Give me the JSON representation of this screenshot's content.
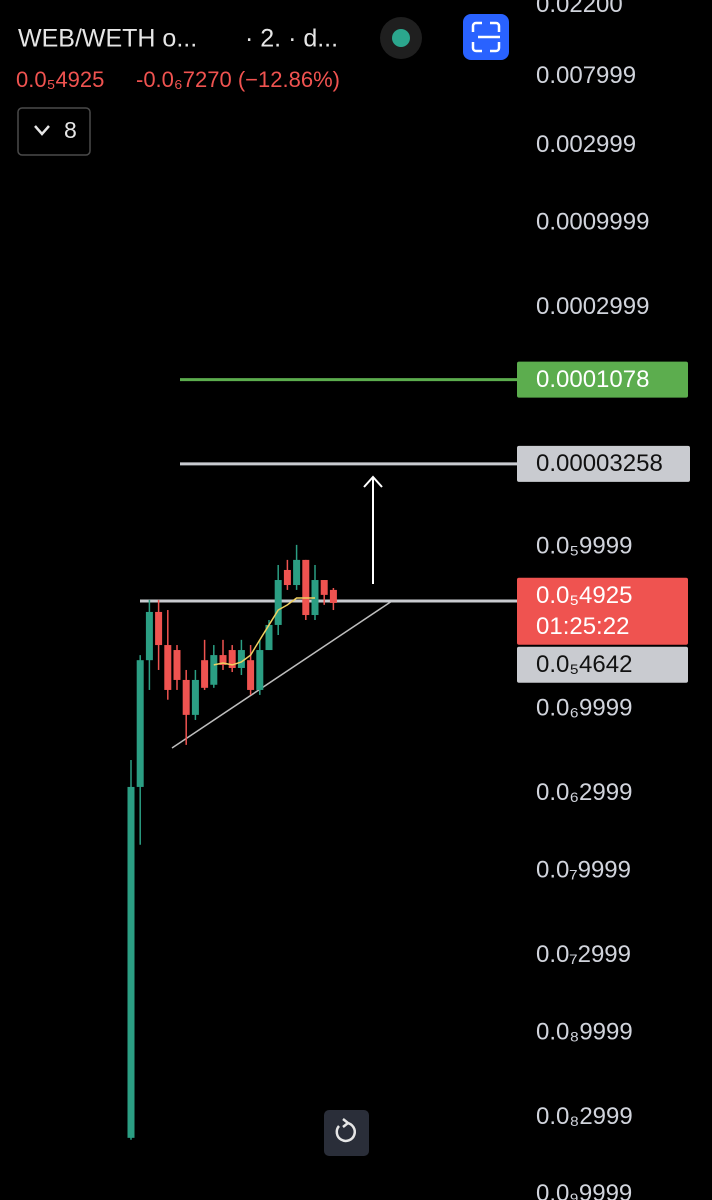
{
  "header": {
    "symbol": "WEB/WETH o...",
    "interval": "· 2. · d...",
    "price": "0.0₅4925",
    "change": "-0.0₆7270 (−12.86%)",
    "indicators": 8
  },
  "chart_data": {
    "type": "candlestick",
    "log_scale": true,
    "ylim": [
      9.3e-10,
      0.0238
    ],
    "yticks": [
      {
        "value": 0.022,
        "label": "0.02200"
      },
      0.007999,
      0.002999,
      0.0009999,
      0.0002999,
      {
        "value": 9.999e-06,
        "label": "0.0₅9999"
      },
      {
        "value": 9.999e-07,
        "label": "0.0₆9999"
      },
      {
        "value": 2.999e-07,
        "label": "0.0₆2999"
      },
      {
        "value": 9.999e-08,
        "label": "0.0₇9999"
      },
      {
        "value": 2.999e-08,
        "label": "0.0₇2999"
      },
      {
        "value": 9.999e-09,
        "label": "0.0₈9999"
      },
      {
        "value": 2.999e-09,
        "label": "0.0₈2999"
      },
      {
        "value": 9.999e-10,
        "label": "0.0₉9999"
      }
    ],
    "up_color": "#2b9e83",
    "down_color": "#ef5350",
    "ma_color": "#f0d060",
    "ohlc": [
      [
        2.25e-09,
        4.84e-07,
        2.19e-09,
        3.3e-07
      ],
      [
        3.3e-07,
        2.15e-06,
        1.45e-07,
        2e-06
      ],
      [
        2e-06,
        4.71e-06,
        1.31e-06,
        3.97e-06
      ],
      [
        3.97e-06,
        4.71e-06,
        1.74e-06,
        2.48e-06
      ],
      [
        2.48e-06,
        4.08e-06,
        1.14e-06,
        1.31e-06
      ],
      [
        2.31e-06,
        2.48e-06,
        1.31e-06,
        1.51e-06
      ],
      [
        1.51e-06,
        1.74e-06,
        6e-07,
        9.19e-07
      ],
      [
        9.19e-07,
        1.74e-06,
        8.55e-07,
        1.51e-06
      ],
      [
        2e-06,
        2.67e-06,
        1.31e-06,
        1.35e-06
      ],
      [
        1.41e-06,
        2.48e-06,
        1.35e-06,
        2.15e-06
      ],
      [
        2.15e-06,
        2.67e-06,
        1.74e-06,
        1.87e-06
      ],
      [
        2.31e-06,
        2.48e-06,
        1.69e-06,
        1.79e-06
      ],
      [
        1.79e-06,
        2.67e-06,
        1.62e-06,
        2.31e-06
      ],
      [
        2e-06,
        2.48e-06,
        1.22e-06,
        1.31e-06
      ],
      [
        1.31e-06,
        2.67e-06,
        1.22e-06,
        2.31e-06
      ],
      [
        2.31e-06,
        3.54e-06,
        2.31e-06,
        3.3e-06
      ],
      [
        3.3e-06,
        7.74e-06,
        2.86e-06,
        6.25e-06
      ],
      [
        7.21e-06,
        8.32e-06,
        5.43e-06,
        5.82e-06
      ],
      [
        5.82e-06,
        1.03e-05,
        5.43e-06,
        8.32e-06
      ],
      [
        8.32e-06,
        8.32e-06,
        3.54e-06,
        3.8e-06
      ],
      [
        3.8e-06,
        7.74e-06,
        3.54e-06,
        6.25e-06
      ],
      [
        6.25e-06,
        6.25e-06,
        4.39e-06,
        5.06e-06
      ],
      [
        5.43e-06,
        5.58e-06,
        4.08e-06,
        4.51e-06
      ]
    ],
    "ma_values": [
      null,
      null,
      null,
      null,
      null,
      null,
      null,
      null,
      null,
      1.87e-06,
      1.92e-06,
      1.87e-06,
      1.95e-06,
      2.15e-06,
      2.67e-06,
      3.3e-06,
      4.08e-06,
      4.39e-06,
      4.84e-06,
      4.84e-06,
      4.84e-06,
      null,
      null
    ],
    "price_lines": [
      {
        "value": 0.0001078,
        "label": "0.0001078",
        "color": "#5cad4e",
        "text_color": "#ffffff"
      },
      {
        "value": 3.258e-05,
        "label": "0.00003258",
        "color": "#c9cbd0",
        "text_color": "#111111"
      },
      {
        "value": 4.642e-06,
        "label": "0.0₅4642",
        "color": "#c9cbd0",
        "text_color": "#111111"
      }
    ],
    "current_price": {
      "value": 4.925e-06,
      "label": "0.0₅4925",
      "countdown": "01:25:22",
      "color": "#ef5350"
    }
  }
}
